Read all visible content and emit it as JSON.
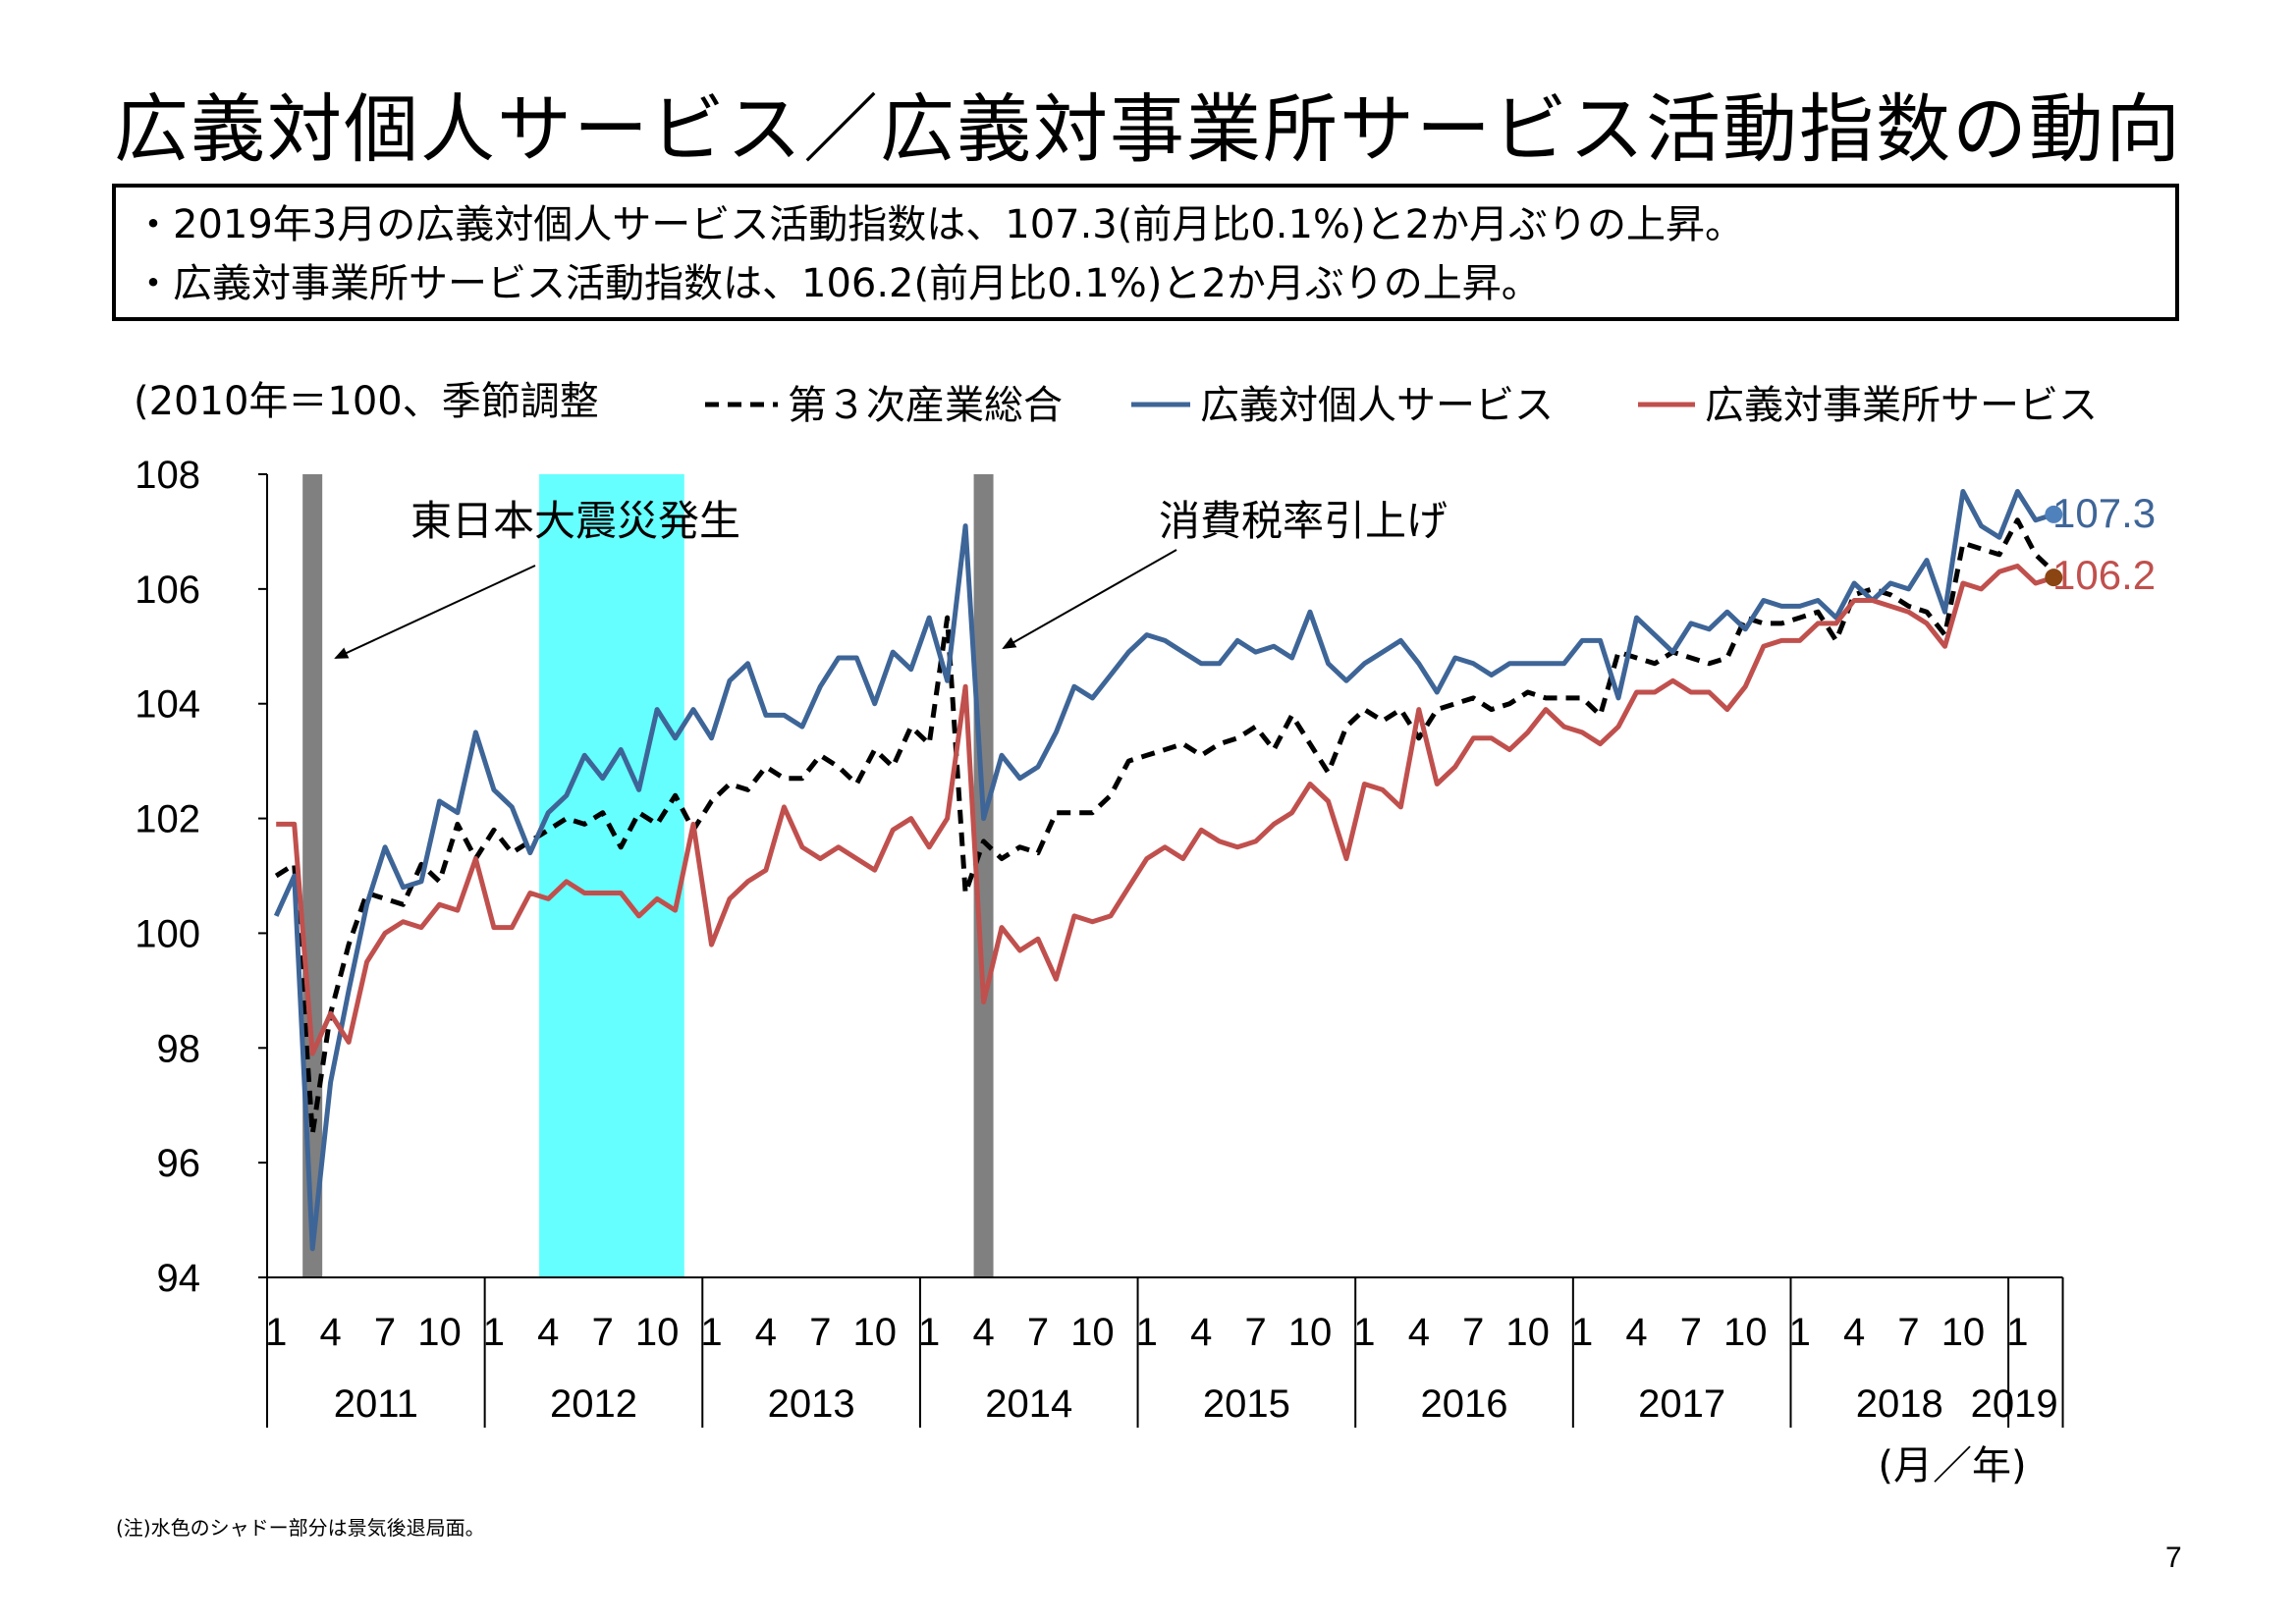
{
  "slide": {
    "title": "広義対個人サービス／広義対事業所サービス活動指数の動向",
    "summary": [
      "・2019年3月の広義対個人サービス活動指数は、107.3(前月比0.1%)と2か月ぶりの上昇。",
      "・広義対事業所サービス活動指数は、106.2(前月比0.1%)と2か月ぶりの上昇。"
    ],
    "footnote": "(注)水色のシャドー部分は景気後退局面。",
    "page_number": "7"
  },
  "chart_data": {
    "type": "line",
    "unit_note": "(2010年＝100、季節調整",
    "ylim": [
      94,
      108
    ],
    "yticks": [
      94,
      96,
      98,
      100,
      102,
      104,
      106,
      108
    ],
    "x_start": "2011-01",
    "x_end": "2019-03",
    "month_tick_labels": [
      "1",
      "4",
      "7",
      "10"
    ],
    "year_labels": [
      "2011",
      "2012",
      "2013",
      "2014",
      "2015",
      "2016",
      "2017",
      "2018",
      "2019"
    ],
    "last_year_month_labels": [
      "1"
    ],
    "axis_unit_label": "(月／年)",
    "colors": {
      "tertiary": "#000000",
      "personal": "#3e6597",
      "business": "#c0504d",
      "shade_recession": "#66ffff",
      "shade_event": "#808080",
      "endpoint_personal": "#4f81bd",
      "endpoint_business": "#8b4513"
    },
    "recession_shade": {
      "from": "2012-04",
      "to": "2012-11"
    },
    "event_bars": [
      {
        "month": "2011-03"
      },
      {
        "month": "2014-04"
      }
    ],
    "annotations": [
      {
        "text": "東日本大震災発生",
        "points_to": "2011-03"
      },
      {
        "text": "消費税率引上げ",
        "points_to": "2014-04"
      }
    ],
    "end_labels": {
      "personal": "107.3",
      "business": "106.2"
    },
    "series": [
      {
        "key": "tertiary",
        "name": "第３次産業総合",
        "style": "dashed",
        "values": [
          101.0,
          101.2,
          96.5,
          98.6,
          99.8,
          100.7,
          100.6,
          100.5,
          101.2,
          100.9,
          101.9,
          101.3,
          101.8,
          101.4,
          101.6,
          101.8,
          102.0,
          101.9,
          102.1,
          101.5,
          102.1,
          101.9,
          102.4,
          101.8,
          102.3,
          102.6,
          102.5,
          102.9,
          102.7,
          102.7,
          103.1,
          102.9,
          102.6,
          103.2,
          102.9,
          103.6,
          103.3,
          105.5,
          100.7,
          101.6,
          101.3,
          101.5,
          101.4,
          102.1,
          102.1,
          102.1,
          102.4,
          103.0,
          103.1,
          103.2,
          103.3,
          103.1,
          103.3,
          103.4,
          103.6,
          103.2,
          103.8,
          103.3,
          102.8,
          103.6,
          103.9,
          103.7,
          103.9,
          103.4,
          103.9,
          104.0,
          104.1,
          103.9,
          104.0,
          104.2,
          104.1,
          104.1,
          104.1,
          103.8,
          104.9,
          104.8,
          104.7,
          104.9,
          104.8,
          104.7,
          104.8,
          105.5,
          105.4,
          105.4,
          105.5,
          105.6,
          105.1,
          105.9,
          106.0,
          105.9,
          105.7,
          105.6,
          105.2,
          106.8,
          106.7,
          106.6,
          107.2,
          106.6,
          106.3
        ]
      },
      {
        "key": "personal",
        "name": "広義対個人サービス",
        "style": "solid",
        "values": [
          100.3,
          101.0,
          94.5,
          97.4,
          99.0,
          100.5,
          101.5,
          100.8,
          100.9,
          102.3,
          102.1,
          103.5,
          102.5,
          102.2,
          101.4,
          102.1,
          102.4,
          103.1,
          102.7,
          103.2,
          102.5,
          103.9,
          103.4,
          103.9,
          103.4,
          104.4,
          104.7,
          103.8,
          103.8,
          103.6,
          104.3,
          104.8,
          104.8,
          104.0,
          104.9,
          104.6,
          105.5,
          104.4,
          107.1,
          102.0,
          103.1,
          102.7,
          102.9,
          103.5,
          104.3,
          104.1,
          104.5,
          104.9,
          105.2,
          105.1,
          104.9,
          104.7,
          104.7,
          105.1,
          104.9,
          105.0,
          104.8,
          105.6,
          104.7,
          104.4,
          104.7,
          104.9,
          105.1,
          104.7,
          104.2,
          104.8,
          104.7,
          104.5,
          104.7,
          104.7,
          104.7,
          104.7,
          105.1,
          105.1,
          104.1,
          105.5,
          105.2,
          104.9,
          105.4,
          105.3,
          105.6,
          105.3,
          105.8,
          105.7,
          105.7,
          105.8,
          105.5,
          106.1,
          105.8,
          106.1,
          106.0,
          106.5,
          105.6,
          107.7,
          107.1,
          106.9,
          107.7,
          107.2,
          107.3
        ]
      },
      {
        "key": "business",
        "name": "広義対事業所サービス",
        "style": "solid",
        "values": [
          101.9,
          101.9,
          97.9,
          98.6,
          98.1,
          99.5,
          100.0,
          100.2,
          100.1,
          100.5,
          100.4,
          101.3,
          100.1,
          100.1,
          100.7,
          100.6,
          100.9,
          100.7,
          100.7,
          100.7,
          100.3,
          100.6,
          100.4,
          101.9,
          99.8,
          100.6,
          100.9,
          101.1,
          102.2,
          101.5,
          101.3,
          101.5,
          101.3,
          101.1,
          101.8,
          102.0,
          101.5,
          102.0,
          104.3,
          98.8,
          100.1,
          99.7,
          99.9,
          99.2,
          100.3,
          100.2,
          100.3,
          100.8,
          101.3,
          101.5,
          101.3,
          101.8,
          101.6,
          101.5,
          101.6,
          101.9,
          102.1,
          102.6,
          102.3,
          101.3,
          102.6,
          102.5,
          102.2,
          103.9,
          102.6,
          102.9,
          103.4,
          103.4,
          103.2,
          103.5,
          103.9,
          103.6,
          103.5,
          103.3,
          103.6,
          104.2,
          104.2,
          104.4,
          104.2,
          104.2,
          103.9,
          104.3,
          105.0,
          105.1,
          105.1,
          105.4,
          105.4,
          105.8,
          105.8,
          105.7,
          105.6,
          105.4,
          105.0,
          106.1,
          106.0,
          106.3,
          106.4,
          106.1,
          106.2
        ]
      }
    ]
  }
}
